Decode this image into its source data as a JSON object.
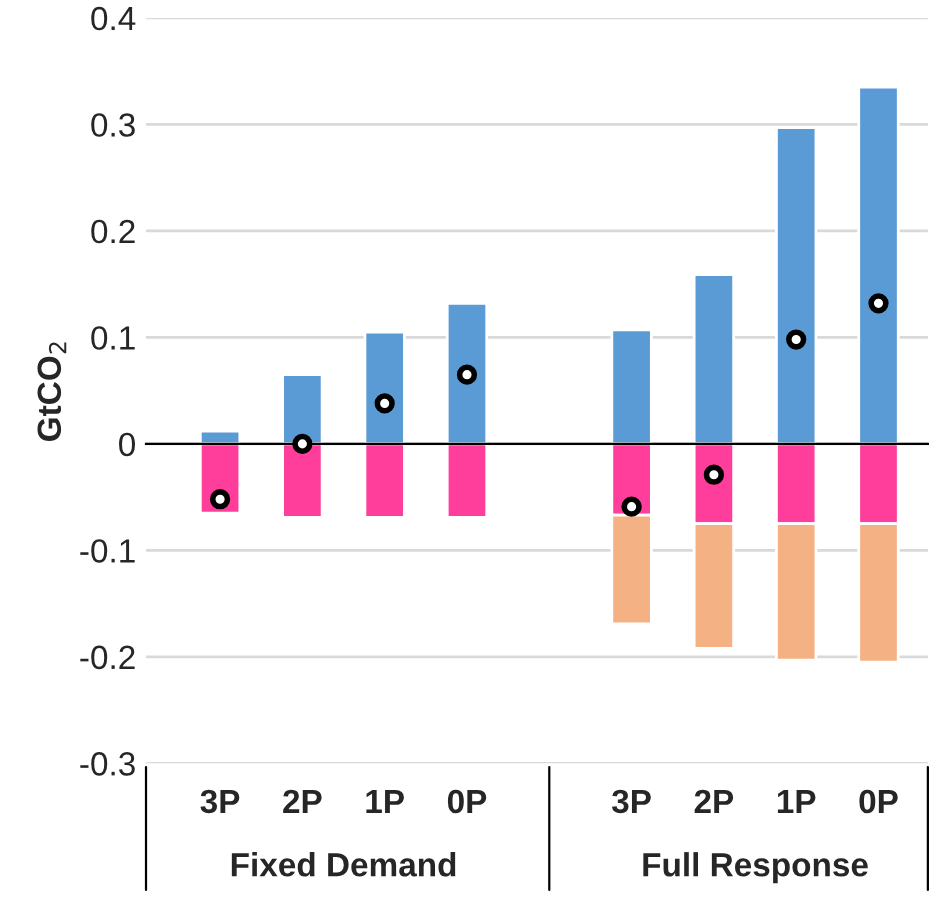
{
  "chart_data": {
    "type": "bar",
    "stacked": true,
    "ylabel": "GtCO$_{2}$",
    "categories": [
      "3P",
      "2P",
      "1P",
      "0P",
      null,
      "3P",
      "2P",
      "1P",
      "0P"
    ],
    "series": [
      {
        "color": "#5b9bd5",
        "values": [
          0.012,
          0.065,
          0.105,
          0.132,
          null,
          0.107,
          0.159,
          0.297,
          0.335
        ]
      },
      {
        "color": "#ff3d9a",
        "values": [
          -0.065,
          -0.069,
          -0.069,
          -0.069,
          null,
          -0.067,
          -0.075,
          -0.075,
          -0.075
        ]
      },
      {
        "color": "#f4b183",
        "values": [
          null,
          null,
          null,
          null,
          null,
          -0.102,
          -0.117,
          -0.128,
          -0.13
        ]
      },
      {
        "type": "scatter",
        "color": "#000000",
        "marker": "circle",
        "values": [
          -0.052,
          0.0,
          0.038,
          0.065,
          null,
          -0.059,
          -0.029,
          0.098,
          0.132
        ]
      }
    ],
    "ylim": [
      -0.3,
      0.4
    ],
    "yticks": [
      {
        "value": -0.3,
        "label": "-0.3"
      },
      {
        "value": -0.2,
        "label": "-0.2"
      },
      {
        "value": -0.1,
        "label": "-0.1"
      },
      0,
      0.1,
      0.2,
      0.3,
      0.4
    ],
    "grid": "y",
    "annotations": [
      "Fixed Demand",
      "Full Response"
    ]
  }
}
